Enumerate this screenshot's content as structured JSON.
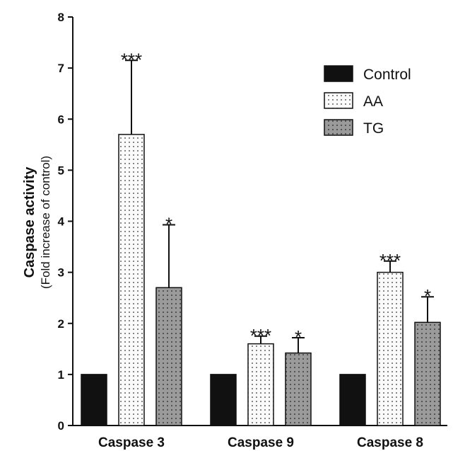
{
  "chart_data": {
    "type": "bar",
    "categories": [
      "Caspase 3",
      "Caspase 9",
      "Caspase 8"
    ],
    "series": [
      {
        "name": "Control",
        "values": [
          1,
          1,
          1
        ],
        "errors": [
          0,
          0,
          0
        ],
        "significance": [
          "",
          "",
          ""
        ],
        "fill": "solid",
        "color": "#111111"
      },
      {
        "name": "AA",
        "values": [
          5.7,
          1.6,
          3.0
        ],
        "errors": [
          1.45,
          0.15,
          0.22
        ],
        "significance": [
          "***",
          "***",
          "***"
        ],
        "fill": "dotted-light",
        "color": "#f7f7f7"
      },
      {
        "name": "TG",
        "values": [
          2.7,
          1.42,
          2.02
        ],
        "errors": [
          1.23,
          0.3,
          0.5
        ],
        "significance": [
          "*",
          "*",
          "*"
        ],
        "fill": "dotted-grey",
        "color": "#9a9a9a"
      }
    ],
    "ylabel": "Caspase activity",
    "ylabel_sub": "(Fold increase of control)",
    "ylim": [
      0,
      8
    ],
    "yticks": [
      "0",
      "1",
      "2",
      "3",
      "4",
      "5",
      "6",
      "7",
      "8"
    ],
    "legend_position": "top-right",
    "grid": false
  }
}
